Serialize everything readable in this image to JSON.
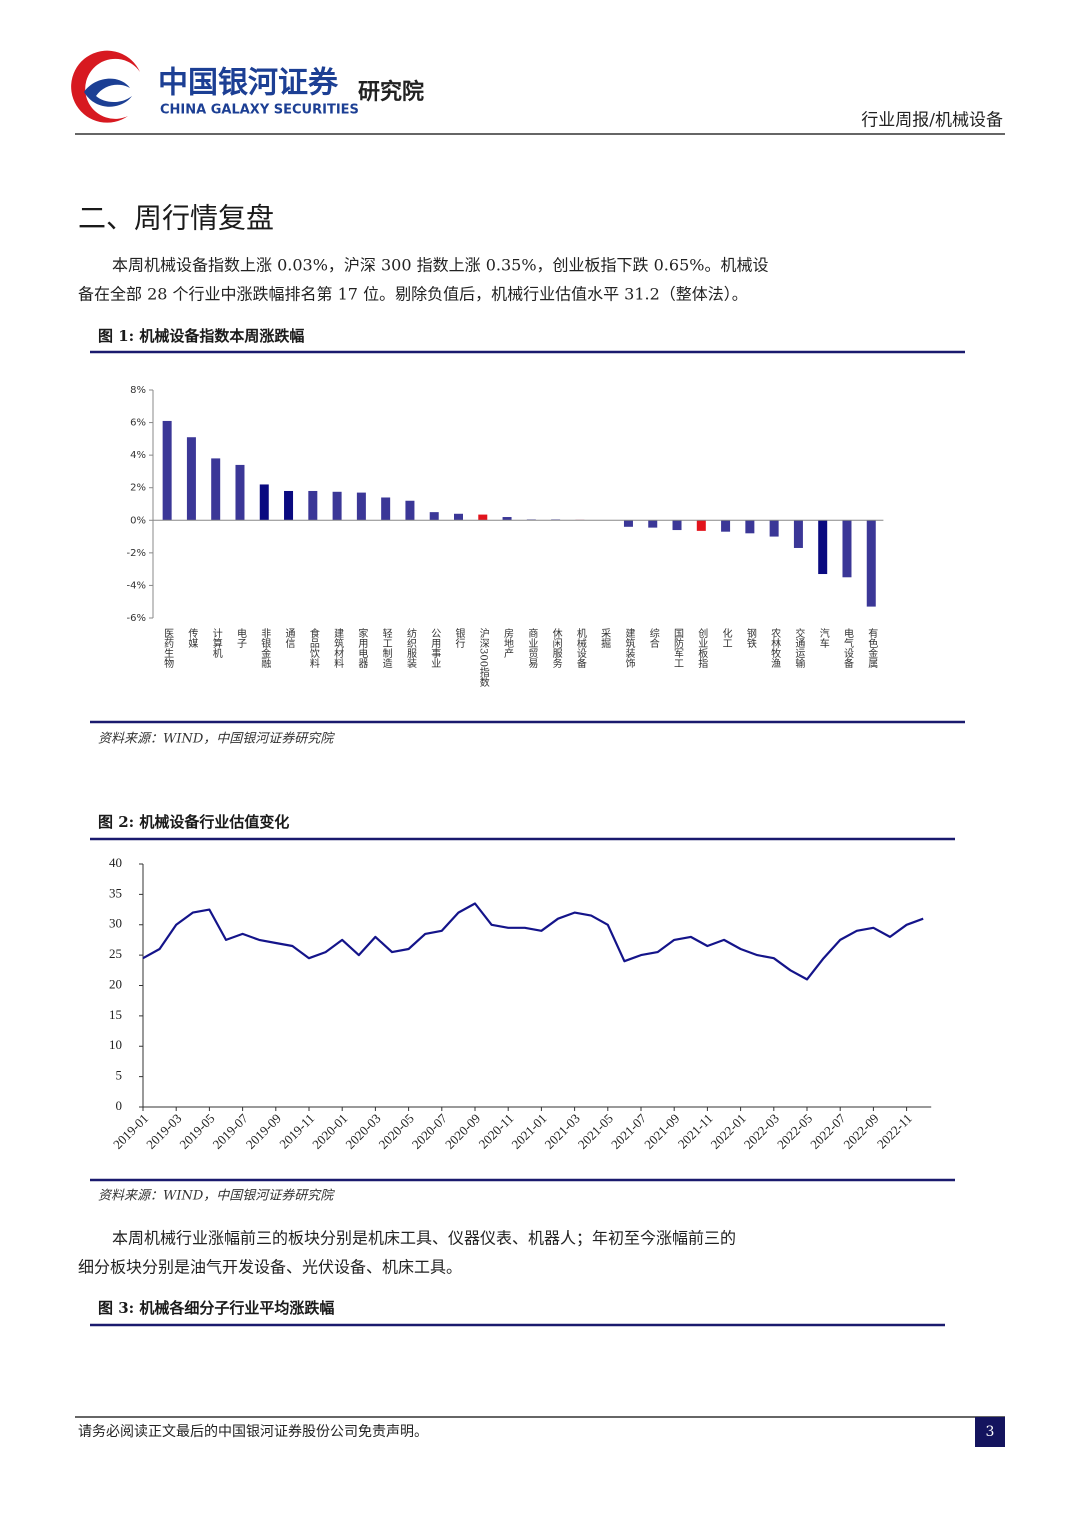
{
  "header": {
    "brand_cn": "中国银河证券",
    "brand_en": "CHINA GALAXY SECURITIES",
    "institute": "研究院",
    "report_type": "行业周报/机械设备"
  },
  "section_title": "二、周行情复盘",
  "paragraphs": [
    [
      "本周机械设备指数上涨 0.03%，沪深 300 指数上涨 0.35%，创业板指下跌 0.65%。机械设",
      "备在全部 28 个行业中涨跌幅排名第 17 位。剔除负值后，机械行业估值水平 31.2（整体法）。"
    ],
    [
      "本周机械行业涨幅前三的板块分别是机床工具、仪器仪表、机器人；年初至今涨幅前三的",
      "细分板块分别是油气开发设备、光伏设备、机床工具。"
    ]
  ],
  "figures": [
    {
      "title": "图 1:  机械设备指数本周涨跌幅",
      "source": "资料来源：WIND，中国银河证券研究院"
    },
    {
      "title": "图 2:  机械设备行业估值变化",
      "source": "资料来源：WIND，中国银河证券研究院"
    },
    {
      "title": "图 3:  机械各细分子行业平均涨跌幅"
    }
  ],
  "footer": {
    "disclaimer": "请务必阅读正文最后的中国银河证券股份公司免责声明。",
    "page": 3
  },
  "chart_data": [
    {
      "type": "bar",
      "categories": [
        "医药生物",
        "传媒",
        "计算机",
        "电子",
        "非银金融",
        "通信",
        "食品饮料",
        "建筑材料",
        "家用电器",
        "轻工制造",
        "纺织服装",
        "公用事业",
        "银行",
        "沪深300指数",
        "房地产",
        "商业贸易",
        "休闲服务",
        "机械设备",
        "采掘",
        "建筑装饰",
        "综合",
        "国防军工",
        "创业板指",
        "化工",
        "钢铁",
        "农林牧渔",
        "交通运输",
        "汽车",
        "电气设备",
        "有色金属"
      ],
      "values": [
        6.1,
        5.1,
        3.8,
        3.4,
        2.2,
        1.8,
        1.8,
        1.75,
        1.7,
        1.4,
        1.2,
        0.5,
        0.4,
        0.35,
        0.2,
        0.05,
        0.05,
        0.03,
        0,
        -0.4,
        -0.45,
        -0.6,
        -0.65,
        -0.7,
        -0.8,
        -1.0,
        -1.7,
        -3.3,
        -3.5,
        -5.3
      ],
      "colors": [
        "#3b3797",
        "#3b3797",
        "#3b3797",
        "#3b3797",
        "#0a0a80",
        "#0a0a80",
        "#3b3797",
        "#3b3797",
        "#3b3797",
        "#3b3797",
        "#3b3797",
        "#3b3797",
        "#3b3797",
        "#e2141c",
        "#3b3797",
        "#3b3797",
        "#3b3797",
        "#d0416b",
        "#3b3797",
        "#3b3797",
        "#3b3797",
        "#3b3797",
        "#e2141c",
        "#3b3797",
        "#3b3797",
        "#3b3797",
        "#3b3797",
        "#0a0a80",
        "#3b3797",
        "#3b3797"
      ],
      "ylim": [
        -6,
        8
      ],
      "yticks": [
        {
          "value": -6,
          "label": "-6%"
        },
        {
          "value": -4,
          "label": "-4%"
        },
        {
          "value": -2,
          "label": "-2%"
        },
        {
          "value": 0,
          "label": "0%"
        },
        {
          "value": 2,
          "label": "2%"
        },
        {
          "value": 4,
          "label": "4%"
        },
        {
          "value": 6,
          "label": "6%"
        },
        {
          "value": 8,
          "label": "8%"
        }
      ]
    },
    {
      "type": "line",
      "color": "#14148a",
      "x": [
        "2019-01",
        "2019-02",
        "2019-03",
        "2019-04",
        "2019-05",
        "2019-06",
        "2019-07",
        "2019-08",
        "2019-09",
        "2019-10",
        "2019-11",
        "2019-12",
        "2020-01",
        "2020-02",
        "2020-03",
        "2020-04",
        "2020-05",
        "2020-06",
        "2020-07",
        "2020-08",
        "2020-09",
        "2020-10",
        "2020-11",
        "2020-12",
        "2021-01",
        "2021-02",
        "2021-03",
        "2021-04",
        "2021-05",
        "2021-06",
        "2021-07",
        "2021-08",
        "2021-09",
        "2021-10",
        "2021-11",
        "2021-12",
        "2022-01",
        "2022-02",
        "2022-03",
        "2022-04",
        "2022-05",
        "2022-06",
        "2022-07",
        "2022-08",
        "2022-09",
        "2022-10",
        "2022-11",
        "2022-12"
      ],
      "values": [
        24.5,
        26,
        30,
        32,
        32.5,
        27.5,
        28.5,
        27.5,
        27,
        26.5,
        24.5,
        25.5,
        27.5,
        25,
        28,
        25.5,
        26,
        28.5,
        29,
        32,
        33.5,
        30,
        29.5,
        29.5,
        29,
        31,
        32,
        31.5,
        30,
        24,
        25,
        25.5,
        27.5,
        28,
        26.5,
        27.5,
        26,
        25,
        24.5,
        22.5,
        21,
        24.5,
        27.5,
        29,
        29.5,
        28,
        30,
        31
      ],
      "ylim": [
        0,
        40
      ],
      "yticks": [
        0,
        5,
        10,
        15,
        20,
        25,
        30,
        35,
        40
      ],
      "xticks": [
        "2019-01",
        "2019-03",
        "2019-05",
        "2019-07",
        "2019-09",
        "2019-11",
        "2020-01",
        "2020-03",
        "2020-05",
        "2020-07",
        "2020-09",
        "2020-11",
        "2021-01",
        "2021-03",
        "2021-05",
        "2021-07",
        "2021-09",
        "2021-11",
        "2022-01",
        "2022-03",
        "2022-05",
        "2022-07",
        "2022-09",
        "2022-11"
      ]
    }
  ]
}
